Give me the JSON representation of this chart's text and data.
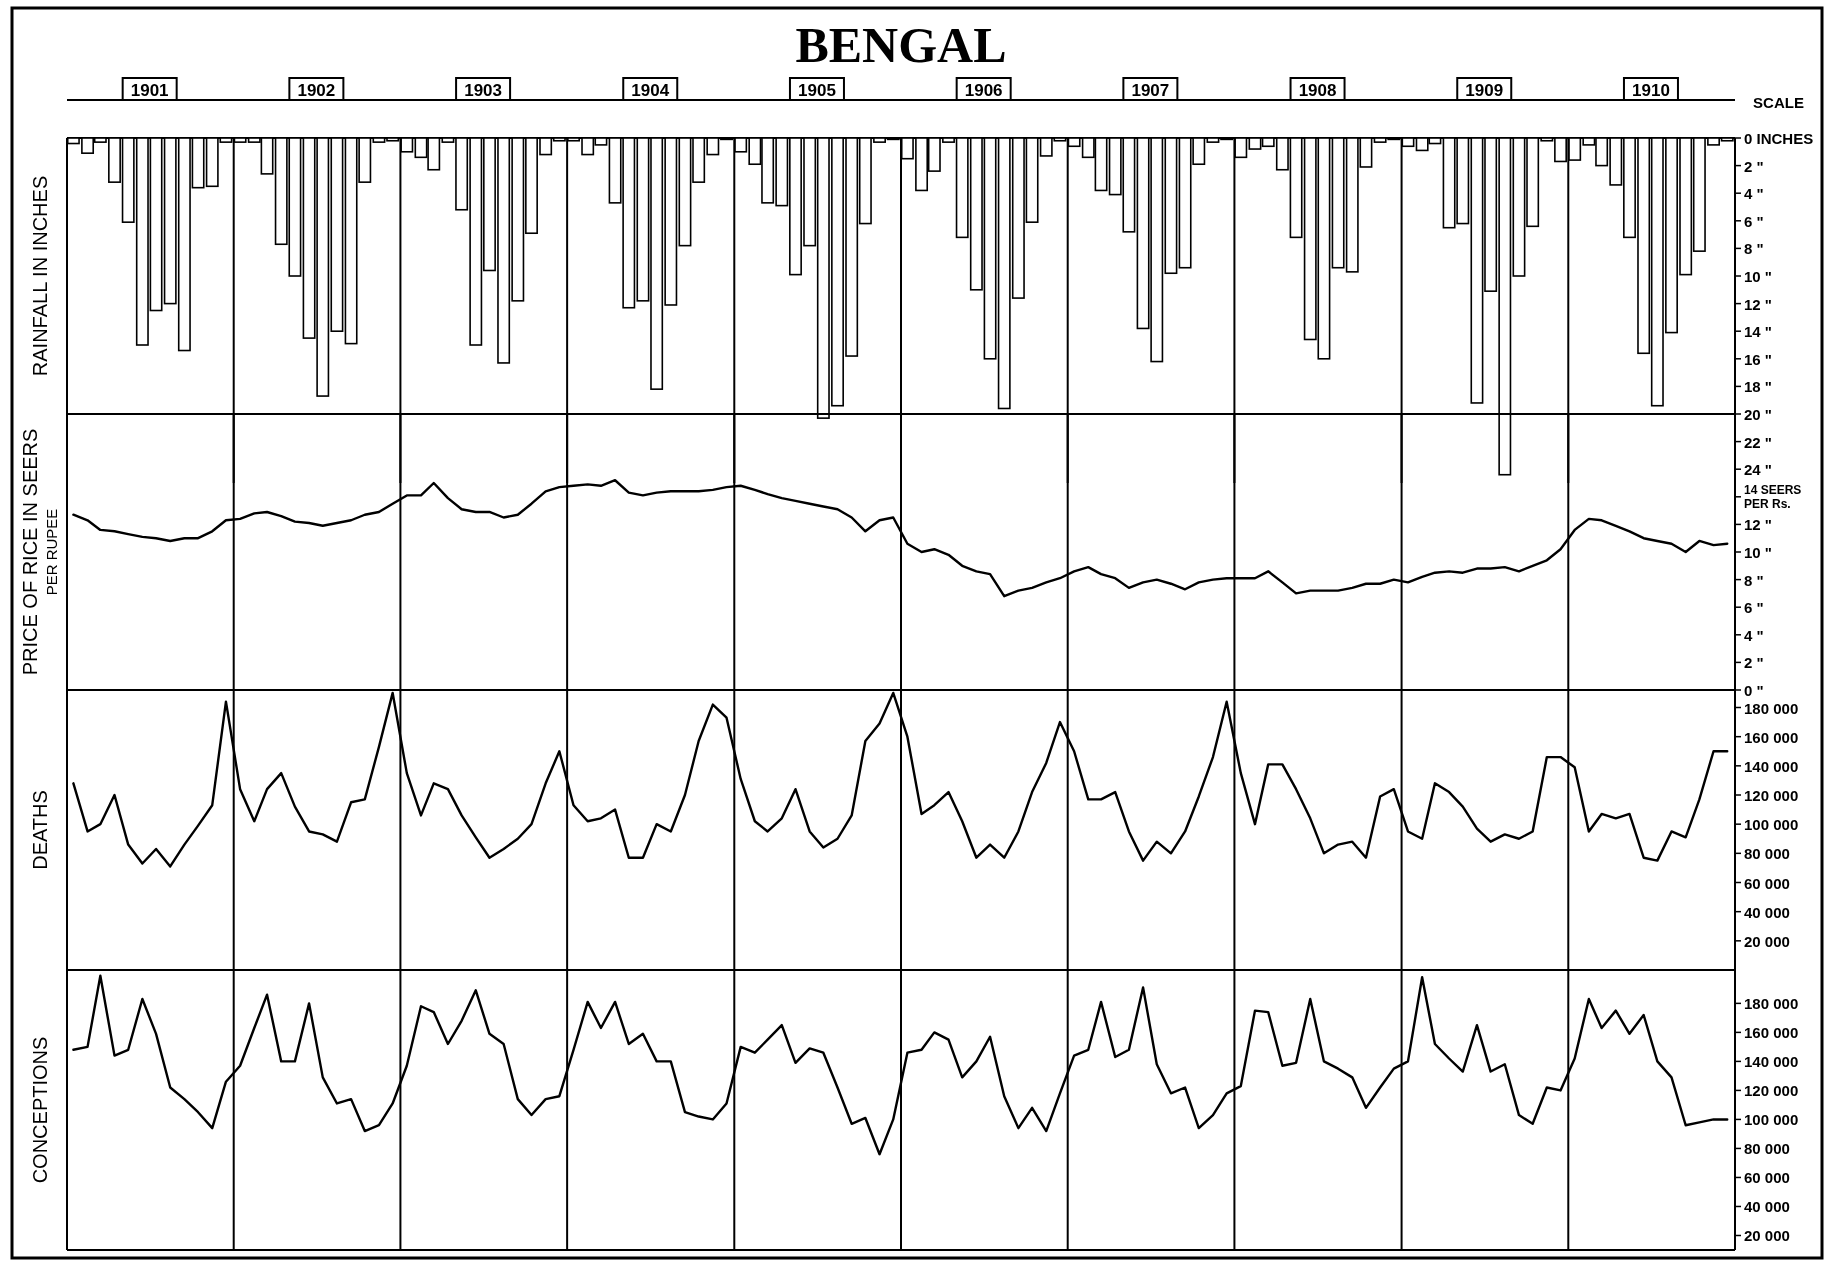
{
  "chart_data": [
    {
      "type": "bar",
      "title": "BENGAL",
      "ylabel": "RAINFALL IN INCHES",
      "annotations": [
        "SCALE"
      ],
      "x": [
        "1901-01-15",
        "1901-02-15",
        "1901-03-15",
        "1901-04-15",
        "1901-05-15",
        "1901-06-15",
        "1901-07-15",
        "1901-08-15",
        "1901-09-15",
        "1901-10-15",
        "1901-11-15",
        "1901-12-15",
        "1902-01-15",
        "1902-02-15",
        "1902-03-15",
        "1902-04-15",
        "1902-05-15",
        "1902-06-15",
        "1902-07-15",
        "1902-08-15",
        "1902-09-15",
        "1902-10-15",
        "1902-11-15",
        "1902-12-15",
        "1903-01-15",
        "1903-02-15",
        "1903-03-15",
        "1903-04-15",
        "1903-05-15",
        "1903-06-15",
        "1903-07-15",
        "1903-08-15",
        "1903-09-15",
        "1903-10-15",
        "1903-11-15",
        "1903-12-15",
        "1904-01-15",
        "1904-02-15",
        "1904-03-15",
        "1904-04-15",
        "1904-05-15",
        "1904-06-15",
        "1904-07-15",
        "1904-08-15",
        "1904-09-15",
        "1904-10-15",
        "1904-11-15",
        "1904-12-15",
        "1905-01-15",
        "1905-02-15",
        "1905-03-15",
        "1905-04-15",
        "1905-05-15",
        "1905-06-15",
        "1905-07-15",
        "1905-08-15",
        "1905-09-15",
        "1905-10-15",
        "1905-11-15",
        "1905-12-15",
        "1906-01-15",
        "1906-02-15",
        "1906-03-15",
        "1906-04-15",
        "1906-05-15",
        "1906-06-15",
        "1906-07-15",
        "1906-08-15",
        "1906-09-15",
        "1906-10-15",
        "1906-11-15",
        "1906-12-15",
        "1907-01-15",
        "1907-02-15",
        "1907-03-15",
        "1907-04-15",
        "1907-05-15",
        "1907-06-15",
        "1907-07-15",
        "1907-08-15",
        "1907-09-15",
        "1907-10-15",
        "1907-11-15",
        "1907-12-15",
        "1908-01-15",
        "1908-02-15",
        "1908-03-15",
        "1908-04-15",
        "1908-05-15",
        "1908-06-15",
        "1908-07-15",
        "1908-08-15",
        "1908-09-15",
        "1908-10-15",
        "1908-11-15",
        "1908-12-15",
        "1909-01-15",
        "1909-02-15",
        "1909-03-15",
        "1909-04-15",
        "1909-05-15",
        "1909-06-15",
        "1909-07-15",
        "1909-08-15",
        "1909-09-15",
        "1909-10-15",
        "1909-11-15",
        "1909-12-15",
        "1910-01-15",
        "1910-02-15",
        "1910-03-15",
        "1910-04-15",
        "1910-05-15",
        "1910-06-15",
        "1910-07-15",
        "1910-08-15",
        "1910-09-15",
        "1910-10-15",
        "1910-11-15",
        "1910-12-15"
      ],
      "series": [
        {
          "color": "#000000",
          "values": [
            0.4,
            1.1,
            0.3,
            3.2,
            6.1,
            15.0,
            12.5,
            12.0,
            15.4,
            3.6,
            3.5,
            0.3,
            0.3,
            0.3,
            2.6,
            7.7,
            10.0,
            14.5,
            18.7,
            14.0,
            14.9,
            3.2,
            0.3,
            0.2,
            1.0,
            1.4,
            2.3,
            0.3,
            5.2,
            15.0,
            9.6,
            16.3,
            11.8,
            6.9,
            1.2,
            0.2,
            0.2,
            1.2,
            0.5,
            4.7,
            12.3,
            11.8,
            18.2,
            12.1,
            7.8,
            3.2,
            1.2,
            0.1,
            1.0,
            1.9,
            4.7,
            4.9,
            9.9,
            7.8,
            20.3,
            19.4,
            15.8,
            6.2,
            0.3,
            0.1,
            1.5,
            3.8,
            2.4,
            0.3,
            7.2,
            11.0,
            16.0,
            19.6,
            11.6,
            6.1,
            1.3,
            0.2,
            0.6,
            1.4,
            3.8,
            4.1,
            6.8,
            13.8,
            16.2,
            9.8,
            9.4,
            1.9,
            0.3,
            0.1,
            1.4,
            0.8,
            0.6,
            2.3,
            7.2,
            14.6,
            16.0,
            9.4,
            9.7,
            2.1,
            0.3,
            0.1,
            0.6,
            0.9,
            0.4,
            6.5,
            6.2,
            19.2,
            11.1,
            24.4,
            10.0,
            6.4,
            0.2,
            1.7,
            1.6,
            0.5,
            2.0,
            3.4,
            7.2,
            15.6,
            19.4,
            14.1,
            9.9,
            8.2,
            0.5,
            0.2
          ]
        }
      ],
      "xlim": [
        "1901-01",
        "1911-01"
      ],
      "ylim": [
        25,
        0
      ],
      "xticks": [
        {
          "value": "1901-07",
          "label": "1901"
        },
        {
          "value": "1902-07",
          "label": "1902"
        },
        {
          "value": "1903-07",
          "label": "1903"
        },
        {
          "value": "1904-07",
          "label": "1904"
        },
        {
          "value": "1905-07",
          "label": "1905"
        },
        {
          "value": "1906-07",
          "label": "1906"
        },
        {
          "value": "1907-07",
          "label": "1907"
        },
        {
          "value": "1908-07",
          "label": "1908"
        },
        {
          "value": "1909-07",
          "label": "1909"
        },
        {
          "value": "1910-07",
          "label": "1910"
        }
      ],
      "yticks": [
        {
          "value": 0,
          "label": "0 INCHES"
        },
        {
          "value": 2,
          "label": "2 \""
        },
        {
          "value": 4,
          "label": "4 \""
        },
        {
          "value": 6,
          "label": "6 \""
        },
        {
          "value": 8,
          "label": "8 \""
        },
        {
          "value": 10,
          "label": "10 \""
        },
        {
          "value": 12,
          "label": "12 \""
        },
        {
          "value": 14,
          "label": "14 \""
        },
        {
          "value": 16,
          "label": "16 \""
        },
        {
          "value": 18,
          "label": "18 \""
        },
        {
          "value": 20,
          "label": "20 \""
        },
        {
          "value": 22,
          "label": "22 \""
        },
        {
          "value": 24,
          "label": "24 \""
        }
      ],
      "ref_lines": [
        {
          "axis": "x",
          "value": "1902-01"
        },
        {
          "axis": "x",
          "value": "1903-01"
        },
        {
          "axis": "x",
          "value": "1904-01"
        },
        {
          "axis": "x",
          "value": "1905-01"
        },
        {
          "axis": "x",
          "value": "1906-01"
        },
        {
          "axis": "x",
          "value": "1907-01"
        },
        {
          "axis": "x",
          "value": "1908-01"
        },
        {
          "axis": "x",
          "value": "1909-01"
        },
        {
          "axis": "x",
          "value": "1910-01"
        }
      ]
    },
    {
      "type": "line",
      "ylabel": "PRICE OF RICE IN SEERS\nPER RUPEE",
      "tick_labels": "y",
      "x": [
        "1901-01-15",
        "1901-02-15",
        "1901-03-15",
        "1901-04-15",
        "1901-05-15",
        "1901-06-15",
        "1901-07-15",
        "1901-08-15",
        "1901-09-15",
        "1901-10-15",
        "1901-11-15",
        "1901-12-15",
        "1902-01-15",
        "1902-02-15",
        "1902-03-15",
        "1902-04-15",
        "1902-05-15",
        "1902-06-15",
        "1902-07-15",
        "1902-08-15",
        "1902-09-15",
        "1902-10-15",
        "1902-11-15",
        "1902-12-15",
        "1903-01-15",
        "1903-02-15",
        "1903-03-15",
        "1903-04-15",
        "1903-05-15",
        "1903-06-15",
        "1903-07-15",
        "1903-08-15",
        "1903-09-15",
        "1903-10-15",
        "1903-11-15",
        "1903-12-15",
        "1904-01-15",
        "1904-02-15",
        "1904-03-15",
        "1904-04-15",
        "1904-05-15",
        "1904-06-15",
        "1904-07-15",
        "1904-08-15",
        "1904-09-15",
        "1904-10-15",
        "1904-11-15",
        "1904-12-15",
        "1905-01-15",
        "1905-02-15",
        "1905-03-15",
        "1905-04-15",
        "1905-05-15",
        "1905-06-15",
        "1905-07-15",
        "1905-08-15",
        "1905-09-15",
        "1905-10-15",
        "1905-11-15",
        "1905-12-15",
        "1906-01-15",
        "1906-02-15",
        "1906-03-15",
        "1906-04-15",
        "1906-05-15",
        "1906-06-15",
        "1906-07-15",
        "1906-08-15",
        "1906-09-15",
        "1906-10-15",
        "1906-11-15",
        "1906-12-15",
        "1907-01-15",
        "1907-02-15",
        "1907-03-15",
        "1907-04-15",
        "1907-05-15",
        "1907-06-15",
        "1907-07-15",
        "1907-08-15",
        "1907-09-15",
        "1907-10-15",
        "1907-11-15",
        "1907-12-15",
        "1908-01-15",
        "1908-02-15",
        "1908-03-15",
        "1908-04-15",
        "1908-05-15",
        "1908-06-15",
        "1908-07-15",
        "1908-08-15",
        "1908-09-15",
        "1908-10-15",
        "1908-11-15",
        "1908-12-15",
        "1909-01-15",
        "1909-02-15",
        "1909-03-15",
        "1909-04-15",
        "1909-05-15",
        "1909-06-15",
        "1909-07-15",
        "1909-08-15",
        "1909-09-15",
        "1909-10-15",
        "1909-11-15",
        "1909-12-15",
        "1910-01-15",
        "1910-02-15",
        "1910-03-15",
        "1910-04-15",
        "1910-05-15",
        "1910-06-15",
        "1910-07-15",
        "1910-08-15",
        "1910-09-15",
        "1910-10-15",
        "1910-11-15",
        "1910-12-15"
      ],
      "series": [
        {
          "color": "#000000",
          "values": [
            12.7,
            12.3,
            11.6,
            11.5,
            11.3,
            11.1,
            11.0,
            10.8,
            11.0,
            11.0,
            11.5,
            12.3,
            12.4,
            12.8,
            12.9,
            12.6,
            12.2,
            12.1,
            11.9,
            12.1,
            12.3,
            12.7,
            12.9,
            13.5,
            14.1,
            14.1,
            15.0,
            13.9,
            13.1,
            12.9,
            12.9,
            12.5,
            12.7,
            13.5,
            14.4,
            14.7,
            14.8,
            14.9,
            14.8,
            15.2,
            14.3,
            14.1,
            14.3,
            14.4,
            14.4,
            14.4,
            14.5,
            14.7,
            14.8,
            14.5,
            14.2,
            13.9,
            13.7,
            13.5,
            13.3,
            13.1,
            12.5,
            11.5,
            12.3,
            12.5,
            10.6,
            10.0,
            10.2,
            9.8,
            9.0,
            8.6,
            8.4,
            6.8,
            7.2,
            7.4,
            7.8,
            8.1,
            8.6,
            8.9,
            8.4,
            8.1,
            7.4,
            7.8,
            8.0,
            7.7,
            7.3,
            7.8,
            8.0,
            8.1,
            8.1,
            8.1,
            8.6,
            7.8,
            7.0,
            7.2,
            7.2,
            7.2,
            7.4,
            7.7,
            7.7,
            8.0,
            7.8,
            8.2,
            8.5,
            8.6,
            8.5,
            8.8,
            8.8,
            8.9,
            8.6,
            9.0,
            9.4,
            10.2,
            11.6,
            12.4,
            12.3,
            11.9,
            11.5,
            11.0,
            10.8,
            10.6,
            10.0,
            10.8,
            10.5,
            10.6
          ]
        }
      ],
      "xlim": [
        "1901-01",
        "1911-01"
      ],
      "ylim": [
        0,
        20
      ],
      "yticks": [
        {
          "value": 0,
          "label": "0 \""
        },
        {
          "value": 2,
          "label": "2 \""
        },
        {
          "value": 4,
          "label": "4 \""
        },
        {
          "value": 6,
          "label": "6 \""
        },
        {
          "value": 8,
          "label": "8 \""
        },
        {
          "value": 10,
          "label": "10 \""
        },
        {
          "value": 12,
          "label": "12 \""
        },
        {
          "value": 14,
          "label": "14 SEERS PER Rs."
        }
      ],
      "ref_lines": [
        {
          "axis": "x",
          "value": "1902-01"
        },
        {
          "axis": "x",
          "value": "1903-01"
        },
        {
          "axis": "x",
          "value": "1904-01"
        },
        {
          "axis": "x",
          "value": "1905-01"
        },
        {
          "axis": "x",
          "value": "1906-01"
        },
        {
          "axis": "x",
          "value": "1907-01"
        },
        {
          "axis": "x",
          "value": "1908-01"
        },
        {
          "axis": "x",
          "value": "1909-01"
        },
        {
          "axis": "x",
          "value": "1910-01"
        }
      ]
    },
    {
      "type": "line",
      "ylabel": "DEATHS",
      "tick_labels": "y",
      "x": [
        "1901-01-15",
        "1901-02-15",
        "1901-03-15",
        "1901-04-15",
        "1901-05-15",
        "1901-06-15",
        "1901-07-15",
        "1901-08-15",
        "1901-09-15",
        "1901-10-15",
        "1901-11-15",
        "1901-12-15",
        "1902-01-15",
        "1902-02-15",
        "1902-03-15",
        "1902-04-15",
        "1902-05-15",
        "1902-06-15",
        "1902-07-15",
        "1902-08-15",
        "1902-09-15",
        "1902-10-15",
        "1902-11-15",
        "1902-12-15",
        "1903-01-15",
        "1903-02-15",
        "1903-03-15",
        "1903-04-15",
        "1903-05-15",
        "1903-06-15",
        "1903-07-15",
        "1903-08-15",
        "1903-09-15",
        "1903-10-15",
        "1903-11-15",
        "1903-12-15",
        "1904-01-15",
        "1904-02-15",
        "1904-03-15",
        "1904-04-15",
        "1904-05-15",
        "1904-06-15",
        "1904-07-15",
        "1904-08-15",
        "1904-09-15",
        "1904-10-15",
        "1904-11-15",
        "1904-12-15",
        "1905-01-15",
        "1905-02-15",
        "1905-03-15",
        "1905-04-15",
        "1905-05-15",
        "1905-06-15",
        "1905-07-15",
        "1905-08-15",
        "1905-09-15",
        "1905-10-15",
        "1905-11-15",
        "1905-12-15",
        "1906-01-15",
        "1906-02-15",
        "1906-03-15",
        "1906-04-15",
        "1906-05-15",
        "1906-06-15",
        "1906-07-15",
        "1906-08-15",
        "1906-09-15",
        "1906-10-15",
        "1906-11-15",
        "1906-12-15",
        "1907-01-15",
        "1907-02-15",
        "1907-03-15",
        "1907-04-15",
        "1907-05-15",
        "1907-06-15",
        "1907-07-15",
        "1907-08-15",
        "1907-09-15",
        "1907-10-15",
        "1907-11-15",
        "1907-12-15",
        "1908-01-15",
        "1908-02-15",
        "1908-03-15",
        "1908-04-15",
        "1908-05-15",
        "1908-06-15",
        "1908-07-15",
        "1908-08-15",
        "1908-09-15",
        "1908-10-15",
        "1908-11-15",
        "1908-12-15",
        "1909-01-15",
        "1909-02-15",
        "1909-03-15",
        "1909-04-15",
        "1909-05-15",
        "1909-06-15",
        "1909-07-15",
        "1909-08-15",
        "1909-09-15",
        "1909-10-15",
        "1909-11-15",
        "1909-12-15",
        "1910-01-15",
        "1910-02-15",
        "1910-03-15",
        "1910-04-15",
        "1910-05-15",
        "1910-06-15",
        "1910-07-15",
        "1910-08-15",
        "1910-09-15",
        "1910-10-15",
        "1910-11-15",
        "1910-12-15"
      ],
      "series": [
        {
          "color": "#000000",
          "values": [
            128000,
            95000,
            100000,
            120000,
            86000,
            73000,
            83000,
            71000,
            86000,
            99000,
            113000,
            184000,
            124000,
            102000,
            124000,
            135000,
            112000,
            95000,
            93000,
            88000,
            115000,
            117000,
            153000,
            190000,
            135000,
            106000,
            128000,
            124000,
            106000,
            91000,
            77000,
            83000,
            90000,
            100000,
            128000,
            150000,
            113000,
            102000,
            104000,
            110000,
            77000,
            77000,
            100000,
            95000,
            120000,
            157000,
            182000,
            173000,
            131000,
            102000,
            95000,
            104000,
            124000,
            95000,
            84000,
            90000,
            106000,
            157000,
            169000,
            190000,
            160000,
            107000,
            113000,
            122000,
            102000,
            77000,
            86000,
            77000,
            95000,
            122000,
            142000,
            170000,
            150000,
            117000,
            117000,
            122000,
            95000,
            75000,
            88000,
            80000,
            95000,
            119000,
            146000,
            184000,
            135000,
            100000,
            141000,
            141000,
            124000,
            104000,
            80000,
            86000,
            88000,
            77000,
            119000,
            124000,
            95000,
            90000,
            128000,
            122000,
            112000,
            97000,
            88000,
            93000,
            90000,
            95000,
            146000,
            146000,
            139000,
            95000,
            107000,
            104000,
            107000,
            77000,
            75000,
            95000,
            91000,
            117000,
            150000,
            150000
          ]
        }
      ],
      "xlim": [
        "1901-01",
        "1911-01"
      ],
      "ylim": [
        0,
        192000
      ],
      "yticks": [
        {
          "value": 20000,
          "label": "20 000"
        },
        {
          "value": 40000,
          "label": "40 000"
        },
        {
          "value": 60000,
          "label": "60 000"
        },
        {
          "value": 80000,
          "label": "80 000"
        },
        {
          "value": 100000,
          "label": "100 000"
        },
        {
          "value": 120000,
          "label": "120 000"
        },
        {
          "value": 140000,
          "label": "140 000"
        },
        {
          "value": 160000,
          "label": "160 000"
        },
        {
          "value": 180000,
          "label": "180 000"
        }
      ],
      "ref_lines": [
        {
          "axis": "x",
          "value": "1902-01"
        },
        {
          "axis": "x",
          "value": "1903-01"
        },
        {
          "axis": "x",
          "value": "1904-01"
        },
        {
          "axis": "x",
          "value": "1905-01"
        },
        {
          "axis": "x",
          "value": "1906-01"
        },
        {
          "axis": "x",
          "value": "1907-01"
        },
        {
          "axis": "x",
          "value": "1908-01"
        },
        {
          "axis": "x",
          "value": "1909-01"
        },
        {
          "axis": "x",
          "value": "1910-01"
        }
      ]
    },
    {
      "type": "line",
      "ylabel": "CONCEPTIONS",
      "tick_labels": "y",
      "x": [
        "1901-01-15",
        "1901-02-15",
        "1901-03-15",
        "1901-04-15",
        "1901-05-15",
        "1901-06-15",
        "1901-07-15",
        "1901-08-15",
        "1901-09-15",
        "1901-10-15",
        "1901-11-15",
        "1901-12-15",
        "1902-01-15",
        "1902-02-15",
        "1902-03-15",
        "1902-04-15",
        "1902-05-15",
        "1902-06-15",
        "1902-07-15",
        "1902-08-15",
        "1902-09-15",
        "1902-10-15",
        "1902-11-15",
        "1902-12-15",
        "1903-01-15",
        "1903-02-15",
        "1903-03-15",
        "1903-04-15",
        "1903-05-15",
        "1903-06-15",
        "1903-07-15",
        "1903-08-15",
        "1903-09-15",
        "1903-10-15",
        "1903-11-15",
        "1903-12-15",
        "1904-01-15",
        "1904-02-15",
        "1904-03-15",
        "1904-04-15",
        "1904-05-15",
        "1904-06-15",
        "1904-07-15",
        "1904-08-15",
        "1904-09-15",
        "1904-10-15",
        "1904-11-15",
        "1904-12-15",
        "1905-01-15",
        "1905-02-15",
        "1905-03-15",
        "1905-04-15",
        "1905-05-15",
        "1905-06-15",
        "1905-07-15",
        "1905-08-15",
        "1905-09-15",
        "1905-10-15",
        "1905-11-15",
        "1905-12-15",
        "1906-01-15",
        "1906-02-15",
        "1906-03-15",
        "1906-04-15",
        "1906-05-15",
        "1906-06-15",
        "1906-07-15",
        "1906-08-15",
        "1906-09-15",
        "1906-10-15",
        "1906-11-15",
        "1906-12-15",
        "1907-01-15",
        "1907-02-15",
        "1907-03-15",
        "1907-04-15",
        "1907-05-15",
        "1907-06-15",
        "1907-07-15",
        "1907-08-15",
        "1907-09-15",
        "1907-10-15",
        "1907-11-15",
        "1907-12-15",
        "1908-01-15",
        "1908-02-15",
        "1908-03-15",
        "1908-04-15",
        "1908-05-15",
        "1908-06-15",
        "1908-07-15",
        "1908-08-15",
        "1908-09-15",
        "1908-10-15",
        "1908-11-15",
        "1908-12-15",
        "1909-01-15",
        "1909-02-15",
        "1909-03-15",
        "1909-04-15",
        "1909-05-15",
        "1909-06-15",
        "1909-07-15",
        "1909-08-15",
        "1909-09-15",
        "1909-10-15",
        "1909-11-15",
        "1909-12-15",
        "1910-01-15",
        "1910-02-15",
        "1910-03-15",
        "1910-04-15",
        "1910-05-15",
        "1910-06-15",
        "1910-07-15",
        "1910-08-15",
        "1910-09-15",
        "1910-10-15",
        "1910-11-15",
        "1910-12-15"
      ],
      "series": [
        {
          "color": "#000000",
          "values": [
            148000,
            150000,
            199000,
            144000,
            148000,
            183000,
            159000,
            122000,
            114000,
            105000,
            94000,
            126000,
            137000,
            163000,
            186000,
            140000,
            140000,
            180000,
            129000,
            111000,
            114000,
            92000,
            96000,
            111000,
            137000,
            178000,
            174000,
            152000,
            168000,
            189000,
            159000,
            152000,
            114000,
            103000,
            114000,
            116000,
            148000,
            181000,
            163000,
            181000,
            152000,
            159000,
            140000,
            140000,
            105000,
            102000,
            100000,
            111000,
            150000,
            146000,
            155000,
            165000,
            139000,
            149000,
            146000,
            122000,
            97000,
            101000,
            76000,
            100000,
            146000,
            148000,
            160000,
            155000,
            129000,
            140000,
            157000,
            116000,
            94000,
            108000,
            92000,
            118000,
            144000,
            148000,
            181000,
            143000,
            148000,
            191000,
            138000,
            118000,
            122000,
            94000,
            103000,
            118000,
            123000,
            175000,
            174000,
            137000,
            139000,
            183000,
            140000,
            135000,
            129000,
            108000,
            122000,
            135000,
            140000,
            198000,
            152000,
            142000,
            133000,
            165000,
            133000,
            138000,
            103000,
            97000,
            122000,
            120000,
            142000,
            183000,
            163000,
            175000,
            159000,
            172000,
            140000,
            129000,
            96000,
            98000,
            100000,
            100000
          ]
        }
      ],
      "xlim": [
        "1901-01",
        "1911-01"
      ],
      "ylim": [
        10000,
        203000
      ],
      "yticks": [
        {
          "value": 20000,
          "label": "20 000"
        },
        {
          "value": 40000,
          "label": "40 000"
        },
        {
          "value": 60000,
          "label": "60 000"
        },
        {
          "value": 80000,
          "label": "80 000"
        },
        {
          "value": 100000,
          "label": "100 000"
        },
        {
          "value": 120000,
          "label": "120 000"
        },
        {
          "value": 140000,
          "label": "140 000"
        },
        {
          "value": 160000,
          "label": "160 000"
        },
        {
          "value": 180000,
          "label": "180 000"
        }
      ],
      "ref_lines": [
        {
          "axis": "x",
          "value": "1902-01"
        },
        {
          "axis": "x",
          "value": "1903-01"
        },
        {
          "axis": "x",
          "value": "1904-01"
        },
        {
          "axis": "x",
          "value": "1905-01"
        },
        {
          "axis": "x",
          "value": "1906-01"
        },
        {
          "axis": "x",
          "value": "1907-01"
        },
        {
          "axis": "x",
          "value": "1908-01"
        },
        {
          "axis": "x",
          "value": "1909-01"
        },
        {
          "axis": "x",
          "value": "1910-01"
        }
      ]
    }
  ]
}
